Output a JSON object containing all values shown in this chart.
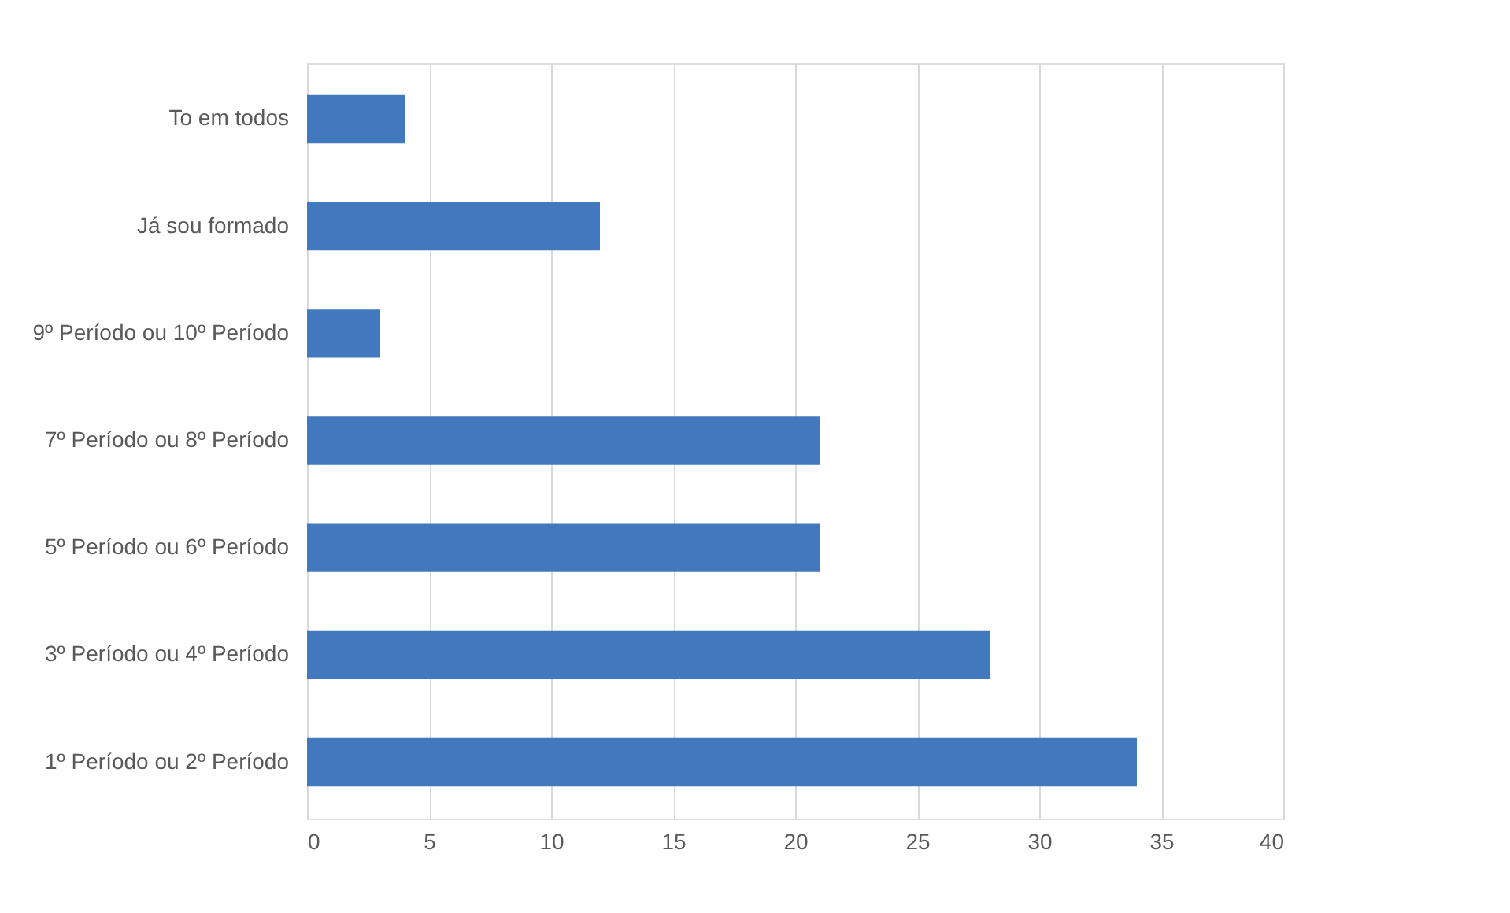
{
  "chart_data": {
    "type": "bar",
    "orientation": "horizontal",
    "categories": [
      "To em todos",
      "Já sou formado",
      "9º Período ou 10º Período",
      "7º Período ou 8º Período",
      "5º Período ou 6º Período",
      "3º Período ou 4º Período",
      "1º Período ou 2º Período"
    ],
    "values": [
      4,
      12,
      3,
      21,
      21,
      28,
      34
    ],
    "color": "#4178be",
    "xlim": [
      0,
      40
    ],
    "xticks": [
      0,
      5,
      10,
      15,
      20,
      25,
      30,
      35,
      40
    ],
    "grid": "x"
  }
}
